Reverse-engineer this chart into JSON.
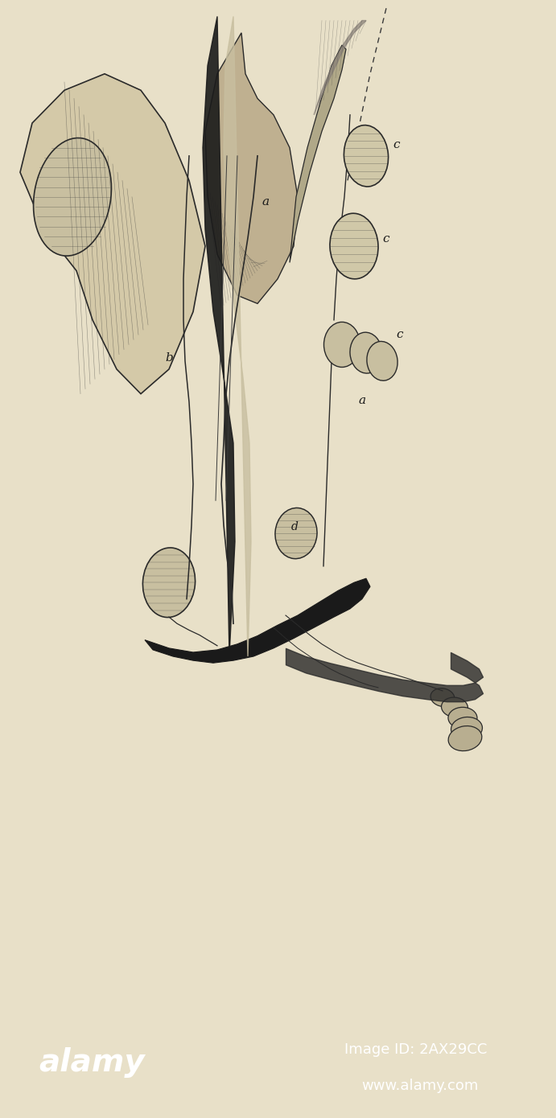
{
  "background_color": "#e8e0c8",
  "alamy_bar_color": "#000000",
  "alamy_text": "alamy",
  "image_id_text": "Image ID: 2AX29CC",
  "website_text": "www.alamy.com",
  "label_a1": "a",
  "label_a2": "a",
  "label_b": "b",
  "label_c1": "c",
  "label_c2": "c",
  "label_c3": "c",
  "label_d": "d",
  "fig_width": 6.91,
  "fig_height": 13.9,
  "dpi": 100
}
